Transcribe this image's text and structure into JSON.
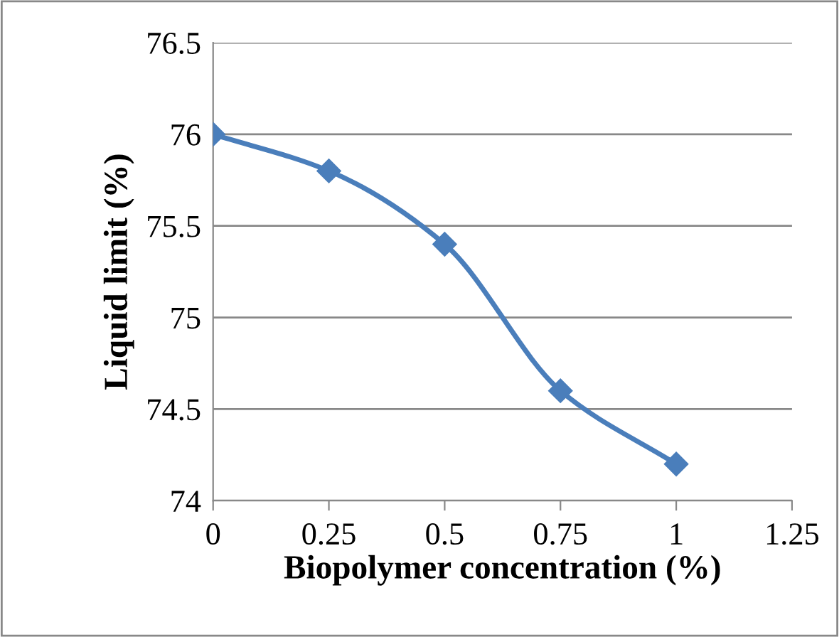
{
  "chart_data": {
    "type": "line",
    "xlabel": "Biopolymer concentration (%)",
    "ylabel": "Liquid limit (%)",
    "x": [
      0,
      0.25,
      0.5,
      0.75,
      1
    ],
    "series": [
      {
        "color": "#4a7ebb",
        "values": [
          76,
          75.8,
          75.4,
          74.6,
          74.2
        ]
      }
    ],
    "xlim": [
      0,
      1.25
    ],
    "xticks": [
      0,
      0.25,
      0.5,
      0.75,
      1,
      1.25
    ],
    "ylim": [
      74,
      76.5
    ],
    "yticks": [
      74,
      74.5,
      75,
      75.5,
      76,
      76.5
    ],
    "grid": "y",
    "marker": "diamond",
    "line_style": "solid",
    "legend": false
  }
}
